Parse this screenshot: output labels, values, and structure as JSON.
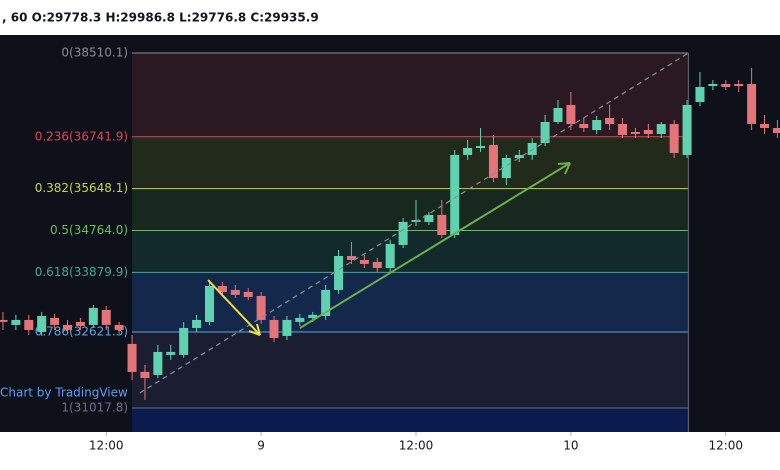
{
  "chart_data": {
    "type": "candlestick",
    "header": ", 60 O:29778.3 H:29986.8 L:29776.8 C:29935.9",
    "credit": "Chart by TradingView",
    "up_color": "#5fd3b0",
    "down_color": "#e5737a",
    "xlim": [
      -0.23,
      60.2
    ],
    "ylim": [
      30511,
      38890
    ],
    "xticks": [
      {
        "value": 8,
        "label": "12:00"
      },
      {
        "value": 20,
        "label": "9"
      },
      {
        "value": 32,
        "label": "12:00"
      },
      {
        "value": 44,
        "label": "10"
      },
      {
        "value": 56,
        "label": "12:00"
      }
    ],
    "fib_start": 10,
    "fib_end": 53.1,
    "fib_levels": [
      {
        "label": "0(38510.1)",
        "value": 38510.1,
        "color": "#8a8d96",
        "fill": "#2a1822"
      },
      {
        "label": "0.236(36741.9)",
        "value": 36741.9,
        "color": "#e0454f",
        "fill": "#222a1c"
      },
      {
        "label": "0.382(35648.1)",
        "value": 35648.1,
        "color": "#c6d44a",
        "fill": "#17291f"
      },
      {
        "label": "0.5(34764.0)",
        "value": 34764.0,
        "color": "#66c055",
        "fill": "#132a2c"
      },
      {
        "label": "0.618(33879.9)",
        "value": 33879.9,
        "color": "#3fa996",
        "fill": "#13284a"
      },
      {
        "label": "0.786(32621.3)",
        "value": 32621.3,
        "color": "#5aa6e0",
        "fill": "#1a1e30"
      },
      {
        "label": "1(31017.8)",
        "value": 31017.8,
        "color": "#6a6e8a",
        "fill": "#0c1b4d"
      }
    ],
    "open": [
      32876,
      32771,
      32876,
      32623,
      32918,
      32771,
      32834,
      32771,
      33087,
      32771,
      32370,
      31779,
      31715,
      32138,
      32138,
      32707,
      32834,
      33593,
      33509,
      33467,
      33382,
      32876,
      32538,
      32834,
      32918,
      32960,
      33509,
      34226,
      34142,
      34100,
      33973,
      34459,
      34944,
      34944,
      35092,
      34670,
      36358,
      36505,
      36569,
      35872,
      36294,
      36358,
      36611,
      37054,
      37413,
      37012,
      36885,
      37138,
      37011,
      36843,
      36885,
      36801,
      37011,
      36358,
      37476,
      37813,
      37856,
      37856,
      37856,
      37012,
      36927
    ],
    "high": [
      33045,
      32982,
      32982,
      33045,
      33003,
      32876,
      32918,
      33192,
      33171,
      32834,
      32560,
      31926,
      32349,
      32349,
      32834,
      32982,
      33720,
      33678,
      33614,
      33551,
      33467,
      32960,
      32960,
      33003,
      33045,
      33614,
      34353,
      34522,
      34248,
      34184,
      34564,
      35028,
      35408,
      35155,
      35408,
      36463,
      36674,
      36927,
      36780,
      36358,
      36463,
      36716,
      37202,
      37518,
      37687,
      37138,
      37180,
      37413,
      37138,
      36927,
      37012,
      37054,
      37096,
      37518,
      38109,
      37940,
      37940,
      37940,
      38193,
      37202,
      37096
    ],
    "low": [
      32665,
      32665,
      32560,
      32538,
      32665,
      32581,
      32665,
      32707,
      32665,
      32581,
      31610,
      31188,
      31652,
      32032,
      32074,
      32623,
      32771,
      33382,
      33340,
      33298,
      32792,
      32412,
      32454,
      32749,
      32834,
      32876,
      33425,
      34058,
      33973,
      33889,
      33889,
      34395,
      34859,
      34880,
      34606,
      34606,
      36252,
      36421,
      35788,
      35729,
      36210,
      36252,
      36547,
      37011,
      36885,
      36843,
      36801,
      36885,
      36716,
      36716,
      36716,
      36716,
      36294,
      36294,
      37391,
      37729,
      37729,
      37687,
      36885,
      36801,
      36716
    ],
    "close": [
      32834,
      32876,
      32665,
      32960,
      32771,
      32665,
      32749,
      33130,
      32771,
      32665,
      31779,
      31652,
      32201,
      32201,
      32707,
      32876,
      33593,
      33467,
      33404,
      33361,
      32876,
      32496,
      32876,
      32918,
      32982,
      33509,
      34226,
      34142,
      34058,
      33973,
      34480,
      34944,
      34986,
      35092,
      34670,
      36358,
      36505,
      36547,
      35872,
      36294,
      36358,
      36611,
      37054,
      37349,
      37011,
      36927,
      37096,
      37011,
      36780,
      36801,
      36801,
      37011,
      36400,
      37413,
      37792,
      37856,
      37792,
      37813,
      37012,
      36927,
      36822
    ]
  }
}
